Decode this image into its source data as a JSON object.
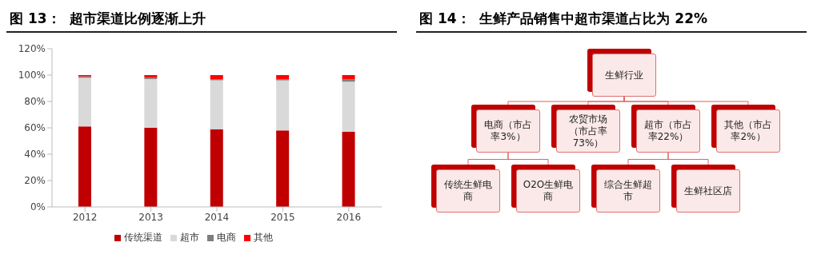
{
  "chart_data": [
    {
      "type": "bar",
      "title": "图 13：  超市渠道比例逐渐上升",
      "categories": [
        "2012",
        "2013",
        "2014",
        "2015",
        "2016"
      ],
      "stacked": true,
      "series": [
        {
          "name": "传统渠道",
          "color": "#c00000",
          "values": [
            61,
            60,
            59,
            58,
            57
          ]
        },
        {
          "name": "超市",
          "color": "#d9d9d9",
          "values": [
            37,
            37,
            37,
            38,
            38
          ]
        },
        {
          "name": "电商",
          "color": "#7f7f7f",
          "values": [
            1,
            1,
            1,
            1,
            2
          ]
        },
        {
          "name": "其他",
          "color": "#ff0000",
          "values": [
            1,
            2,
            3,
            3,
            3
          ]
        }
      ],
      "ylim": [
        0,
        120
      ],
      "yticks": [
        {
          "value": 0,
          "label": "0%"
        },
        {
          "value": 20,
          "label": "20%"
        },
        {
          "value": 40,
          "label": "40%"
        },
        {
          "value": 60,
          "label": "60%"
        },
        {
          "value": 80,
          "label": "80%"
        },
        {
          "value": 100,
          "label": "100%"
        },
        {
          "value": 120,
          "label": "120%"
        }
      ],
      "grid": false,
      "legend": "bottom"
    },
    {
      "type": "other",
      "title": "图 14：  生鲜产品销售中超市渠道占比为 22%",
      "annotations": [
        "生鲜行业",
        "电商（市占率3%）",
        "农贸市场（市占率73%）",
        "超市（市占率22%）",
        "其他（市占率2%）",
        "传统生鲜电商",
        "O2O生鲜电商",
        "综合生鲜超市",
        "生鲜社区店"
      ]
    }
  ]
}
